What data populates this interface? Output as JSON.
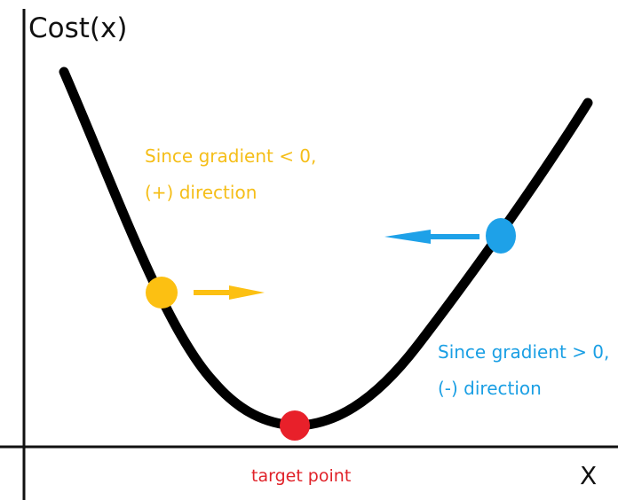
{
  "axes": {
    "y_label": "Cost(x)",
    "x_label": "X"
  },
  "annotations": {
    "left": {
      "line1": "Since gradient < 0,",
      "line2": "(+) direction"
    },
    "right": {
      "line1": "Since gradient > 0,",
      "line2": "(-) direction"
    },
    "minimum": "target point"
  },
  "colors": {
    "curve": "#000000",
    "axes": "#111111",
    "left_point": "#FCC012",
    "right_point": "#1EA1E8",
    "target_point": "#E8202A",
    "left_text": "#F5BE18",
    "right_text": "#1A9FE4",
    "target_text": "#E02128"
  },
  "arrows": {
    "left": "right",
    "right": "left"
  }
}
